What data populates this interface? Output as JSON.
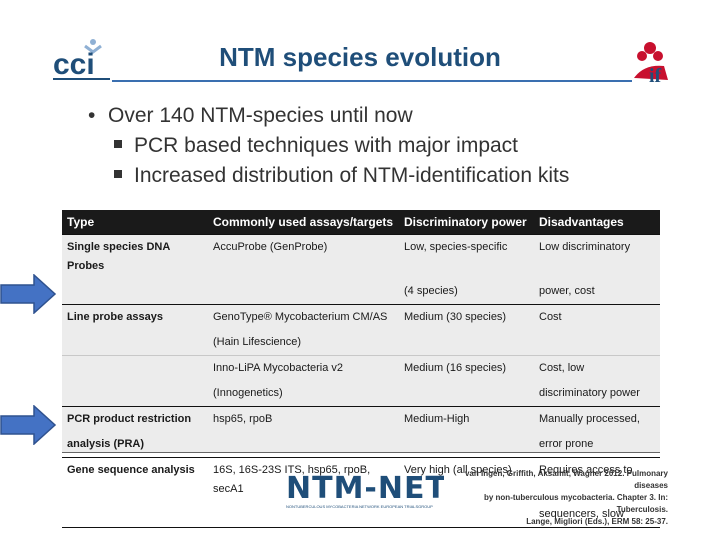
{
  "header": {
    "title": "NTM species evolution",
    "left_logo_text": "cci",
    "right_logo_text": "if"
  },
  "bullets": {
    "main": "Over 140 NTM-species until now",
    "subs": [
      "PCR based techniques with major impact",
      "Increased distribution of NTM-identification kits"
    ]
  },
  "table": {
    "headers": [
      "Type",
      "Commonly used assays/targets",
      "Discriminatory power",
      "Disadvantages"
    ],
    "rows": [
      {
        "type": "Single species DNA Probes",
        "assay": "AccuProbe (GenProbe)",
        "power": "Low, species-specific",
        "dis": "Low discriminatory"
      },
      {
        "type": "",
        "assay": "",
        "power": "(4 species)",
        "dis": "power, cost"
      },
      {
        "type": "Line probe assays",
        "assay": "GenoType® Mycobacterium CM/AS",
        "power": "Medium (30 species)",
        "dis": "Cost"
      },
      {
        "type": "",
        "assay": "(Hain Lifescience)",
        "power": "",
        "dis": ""
      },
      {
        "type": "",
        "assay": "Inno-LiPA Mycobacteria v2",
        "power": "Medium (16 species)",
        "dis": "Cost, low"
      },
      {
        "type": "",
        "assay": "(Innogenetics)",
        "power": "",
        "dis": "discriminatory power"
      },
      {
        "type": "PCR product restriction",
        "assay": "hsp65, rpoB",
        "power": "Medium-High",
        "dis": "Manually processed,"
      },
      {
        "type": "analysis (PRA)",
        "assay": "",
        "power": "",
        "dis": "error prone"
      },
      {
        "type": "Gene sequence analysis",
        "assay": "16S, 16S-23S ITS, hsp65, rpoB, secA1",
        "power": "Very high (all species)",
        "dis": "Requires access to"
      },
      {
        "type": "",
        "assay": "",
        "power": "",
        "dis": "sequencers, slow"
      }
    ]
  },
  "footer": {
    "logo_main": "NTM-NET",
    "logo_sub": "NONTUBERCULOUS MYCOBACTERIA NETWORK EUROPEAN TRIALSGROUP",
    "citation_lines": [
      "van Ingen, Griffith, Aksamit, Wagner 2012. Pulmonary diseases",
      "by non-tuberculous mycobacteria. Chapter 3. In: Tuberculosis.",
      "Lange, Migliori (Eds.), ERM 58: 25-37."
    ]
  },
  "colors": {
    "accent": "#1f4e79",
    "arrow": "#4472c4",
    "table_bg": "#ececec",
    "header_bg": "#1a1a1a"
  }
}
